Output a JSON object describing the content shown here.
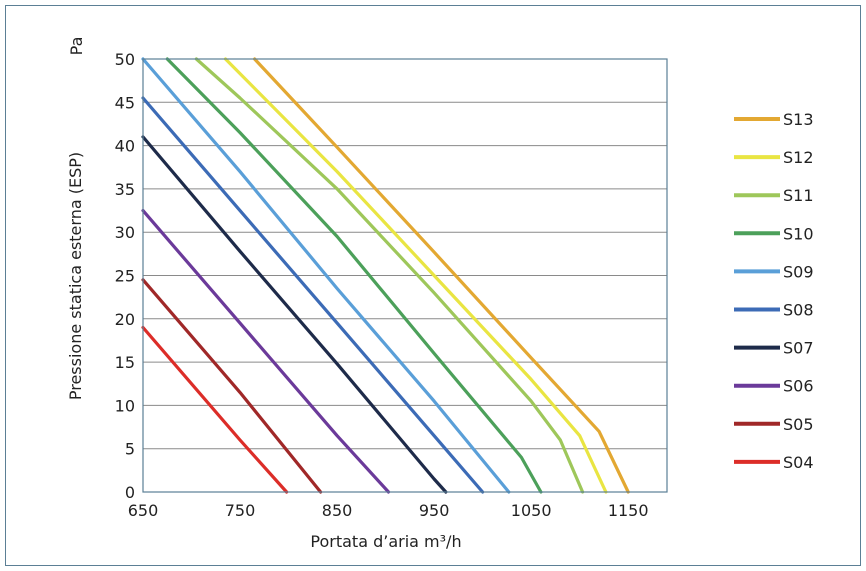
{
  "chart_data": {
    "type": "line",
    "title": "",
    "xlabel": "Portata d’aria m³/h",
    "ylabel": "Pressione statica esterna (ESP)",
    "y_unit": "Pa",
    "xlim": [
      650,
      1190
    ],
    "ylim": [
      0,
      50
    ],
    "x_ticks": [
      "650",
      "750",
      "850",
      "950",
      "1050",
      "1150"
    ],
    "y_ticks": [
      "0",
      "5",
      "10",
      "15",
      "20",
      "25",
      "30",
      "35",
      "40",
      "45",
      "50"
    ],
    "grid": "horizontal",
    "legend_position": "right",
    "series": [
      {
        "name": "S13",
        "color": "#e3a832",
        "points": [
          [
            765,
            50
          ],
          [
            850,
            39.8
          ],
          [
            950,
            27.7
          ],
          [
            1050,
            15.5
          ],
          [
            1120,
            7
          ],
          [
            1150,
            0
          ]
        ]
      },
      {
        "name": "S12",
        "color": "#e9e542",
        "points": [
          [
            735,
            50
          ],
          [
            850,
            37
          ],
          [
            950,
            25
          ],
          [
            1050,
            13
          ],
          [
            1100,
            6.5
          ],
          [
            1127,
            0
          ]
        ]
      },
      {
        "name": "S11",
        "color": "#9ec75a",
        "points": [
          [
            705,
            50
          ],
          [
            750,
            45.5
          ],
          [
            850,
            35
          ],
          [
            950,
            23
          ],
          [
            1050,
            10.5
          ],
          [
            1080,
            6
          ],
          [
            1103,
            0
          ]
        ]
      },
      {
        "name": "S10",
        "color": "#4ca05a",
        "points": [
          [
            675,
            50
          ],
          [
            750,
            41.5
          ],
          [
            850,
            29.5
          ],
          [
            950,
            16
          ],
          [
            1040,
            4
          ],
          [
            1060,
            0
          ]
        ]
      },
      {
        "name": "S09",
        "color": "#5a9fd8",
        "points": [
          [
            650,
            50
          ],
          [
            750,
            37
          ],
          [
            850,
            23.5
          ],
          [
            950,
            10.5
          ],
          [
            1027,
            0
          ]
        ]
      },
      {
        "name": "S08",
        "color": "#3c6bb6",
        "points": [
          [
            650,
            45.5
          ],
          [
            750,
            32.5
          ],
          [
            850,
            19.5
          ],
          [
            950,
            6.5
          ],
          [
            1000,
            0
          ]
        ]
      },
      {
        "name": "S07",
        "color": "#1e2b4a",
        "points": [
          [
            650,
            41
          ],
          [
            750,
            27.8
          ],
          [
            850,
            14.8
          ],
          [
            950,
            1.5
          ],
          [
            962,
            0
          ]
        ]
      },
      {
        "name": "S06",
        "color": "#6b3a9a",
        "points": [
          [
            650,
            32.5
          ],
          [
            750,
            19.5
          ],
          [
            850,
            6.5
          ],
          [
            903,
            0
          ]
        ]
      },
      {
        "name": "S05",
        "color": "#a02828",
        "points": [
          [
            650,
            24.5
          ],
          [
            750,
            11.5
          ],
          [
            833,
            0
          ]
        ]
      },
      {
        "name": "S04",
        "color": "#dc2d28",
        "points": [
          [
            650,
            19
          ],
          [
            750,
            6
          ],
          [
            798,
            0
          ]
        ]
      }
    ]
  }
}
